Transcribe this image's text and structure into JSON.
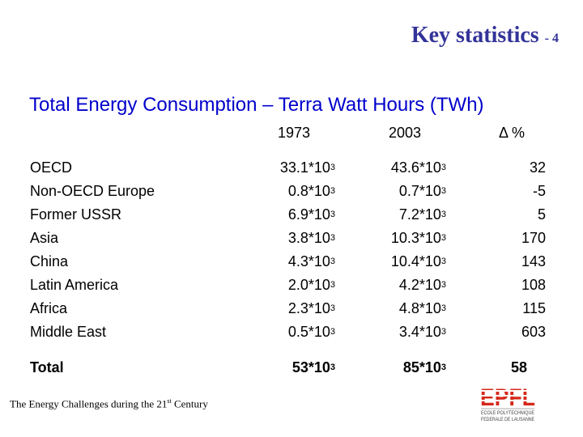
{
  "header": {
    "title": "Key statistics",
    "number": "- 4"
  },
  "subtitle": "Total Energy Consumption – Terra Watt Hours (TWh)",
  "columns": [
    "1973",
    "2003",
    "Δ %"
  ],
  "rows": [
    {
      "region": "OECD",
      "v1973": "33.1*10",
      "v2003": "43.6*10",
      "delta": "32"
    },
    {
      "region": "Non-OECD Europe",
      "v1973": "0.8*10",
      "v2003": "0.7*10",
      "delta": "-5"
    },
    {
      "region": "Former USSR",
      "v1973": "6.9*10",
      "v2003": "7.2*10",
      "delta": "5"
    },
    {
      "region": "Asia",
      "v1973": "3.8*10",
      "v2003": "10.3*10",
      "delta": "170"
    },
    {
      "region": "China",
      "v1973": "4.3*10",
      "v2003": "10.4*10",
      "delta": "143"
    },
    {
      "region": "Latin America",
      "v1973": "2.0*10",
      "v2003": "4.2*10",
      "delta": "108"
    },
    {
      "region": "Africa",
      "v1973": "2.3*10",
      "v2003": "4.8*10",
      "delta": "115"
    },
    {
      "region": "Middle East",
      "v1973": "0.5*10",
      "v2003": "3.4*10",
      "delta": "603"
    }
  ],
  "exponent": "3",
  "total": {
    "label": "Total",
    "v1973": "53*10",
    "v2003": "85*10",
    "delta": "58"
  },
  "footer": {
    "text": "The Energy Challenges during the 21",
    "sup": "st",
    "suffix": " Century"
  },
  "logo": {
    "name": "EPFL",
    "line1": "ECOLE POLYTECHNIQUE",
    "line2": "FEDERALE DE LAUSANNE"
  },
  "colors": {
    "title": "#333399",
    "subtitle": "#0000cc",
    "logo": "#d5281a"
  }
}
